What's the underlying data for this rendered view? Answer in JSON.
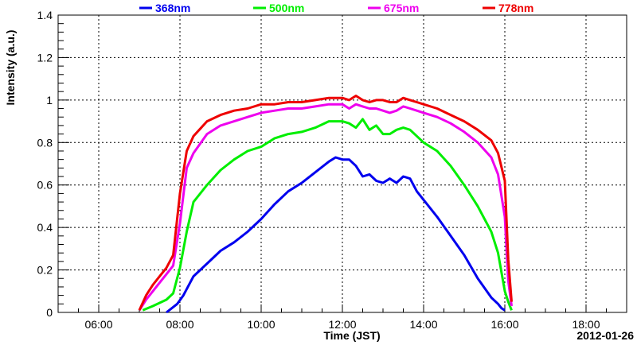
{
  "chart_data": {
    "type": "line",
    "xlabel": "Time (JST)",
    "ylabel": "Intensity (a.u.)",
    "date_label": "2012-01-26",
    "xlim": [
      "05:00",
      "19:00"
    ],
    "ylim": [
      0,
      1.4
    ],
    "x_ticks": [
      "06:00",
      "08:00",
      "10:00",
      "12:00",
      "14:00",
      "16:00",
      "18:00"
    ],
    "y_ticks": [
      "0",
      "0.2",
      "0.4",
      "0.6",
      "0.8",
      "1",
      "1.2",
      "1.4"
    ],
    "grid": true,
    "legend_position": "top",
    "series": [
      {
        "name": "368nm",
        "color": "#0000ee",
        "x": [
          "07:40",
          "07:48",
          "07:56",
          "08:05",
          "08:20",
          "08:40",
          "09:00",
          "09:20",
          "09:40",
          "10:00",
          "10:20",
          "10:40",
          "11:00",
          "11:20",
          "11:40",
          "11:50",
          "12:00",
          "12:10",
          "12:20",
          "12:30",
          "12:40",
          "12:50",
          "13:00",
          "13:10",
          "13:20",
          "13:30",
          "13:40",
          "13:50",
          "14:00",
          "14:20",
          "14:40",
          "15:00",
          "15:20",
          "15:40",
          "15:50",
          "15:55",
          "16:00"
        ],
        "y": [
          0.0,
          0.02,
          0.04,
          0.08,
          0.17,
          0.23,
          0.29,
          0.33,
          0.38,
          0.44,
          0.51,
          0.57,
          0.61,
          0.66,
          0.71,
          0.73,
          0.72,
          0.72,
          0.69,
          0.64,
          0.65,
          0.62,
          0.61,
          0.63,
          0.61,
          0.64,
          0.63,
          0.57,
          0.53,
          0.45,
          0.36,
          0.27,
          0.16,
          0.07,
          0.04,
          0.02,
          0.01
        ]
      },
      {
        "name": "500nm",
        "color": "#00ee00",
        "x": [
          "07:05",
          "07:20",
          "07:40",
          "07:50",
          "08:00",
          "08:10",
          "08:20",
          "08:40",
          "09:00",
          "09:20",
          "09:40",
          "10:00",
          "10:20",
          "10:40",
          "11:00",
          "11:20",
          "11:40",
          "12:00",
          "12:10",
          "12:20",
          "12:30",
          "12:40",
          "12:50",
          "13:00",
          "13:10",
          "13:20",
          "13:30",
          "13:40",
          "13:50",
          "14:00",
          "14:20",
          "14:40",
          "15:00",
          "15:20",
          "15:40",
          "15:50",
          "16:00",
          "16:05",
          "16:10"
        ],
        "y": [
          0.01,
          0.03,
          0.06,
          0.09,
          0.21,
          0.38,
          0.52,
          0.6,
          0.67,
          0.72,
          0.76,
          0.78,
          0.82,
          0.84,
          0.85,
          0.87,
          0.9,
          0.9,
          0.89,
          0.87,
          0.91,
          0.86,
          0.88,
          0.84,
          0.84,
          0.86,
          0.87,
          0.86,
          0.83,
          0.8,
          0.76,
          0.69,
          0.6,
          0.5,
          0.38,
          0.28,
          0.1,
          0.05,
          0.01
        ]
      },
      {
        "name": "675nm",
        "color": "#ee00ee",
        "x": [
          "07:00",
          "07:10",
          "07:20",
          "07:30",
          "07:40",
          "07:50",
          "08:00",
          "08:10",
          "08:20",
          "08:40",
          "09:00",
          "09:20",
          "09:40",
          "10:00",
          "10:20",
          "10:40",
          "11:00",
          "11:20",
          "11:40",
          "12:00",
          "12:10",
          "12:20",
          "12:30",
          "12:40",
          "12:50",
          "13:00",
          "13:10",
          "13:20",
          "13:30",
          "13:40",
          "13:50",
          "14:00",
          "14:20",
          "14:40",
          "15:00",
          "15:20",
          "15:40",
          "15:50",
          "16:00",
          "16:05",
          "16:10"
        ],
        "y": [
          0.01,
          0.06,
          0.1,
          0.14,
          0.18,
          0.22,
          0.42,
          0.68,
          0.75,
          0.84,
          0.88,
          0.9,
          0.92,
          0.94,
          0.95,
          0.96,
          0.96,
          0.97,
          0.98,
          0.98,
          0.96,
          0.98,
          0.97,
          0.96,
          0.96,
          0.95,
          0.94,
          0.95,
          0.97,
          0.96,
          0.95,
          0.94,
          0.92,
          0.89,
          0.85,
          0.8,
          0.73,
          0.65,
          0.45,
          0.15,
          0.03
        ]
      },
      {
        "name": "778nm",
        "color": "#ee0000",
        "x": [
          "07:00",
          "07:10",
          "07:20",
          "07:30",
          "07:40",
          "07:50",
          "08:00",
          "08:10",
          "08:20",
          "08:40",
          "09:00",
          "09:20",
          "09:40",
          "10:00",
          "10:20",
          "10:40",
          "11:00",
          "11:20",
          "11:40",
          "12:00",
          "12:10",
          "12:20",
          "12:30",
          "12:40",
          "12:50",
          "13:00",
          "13:10",
          "13:20",
          "13:30",
          "13:40",
          "13:50",
          "14:00",
          "14:20",
          "14:40",
          "15:00",
          "15:20",
          "15:40",
          "15:50",
          "16:00",
          "16:05",
          "16:10"
        ],
        "y": [
          0.01,
          0.08,
          0.13,
          0.17,
          0.21,
          0.27,
          0.56,
          0.76,
          0.83,
          0.9,
          0.93,
          0.95,
          0.96,
          0.98,
          0.98,
          0.99,
          0.99,
          1.0,
          1.01,
          1.01,
          1.0,
          1.02,
          1.0,
          0.99,
          1.0,
          1.0,
          0.99,
          0.99,
          1.01,
          1.0,
          0.99,
          0.98,
          0.96,
          0.93,
          0.9,
          0.86,
          0.81,
          0.75,
          0.62,
          0.25,
          0.05
        ]
      }
    ]
  }
}
